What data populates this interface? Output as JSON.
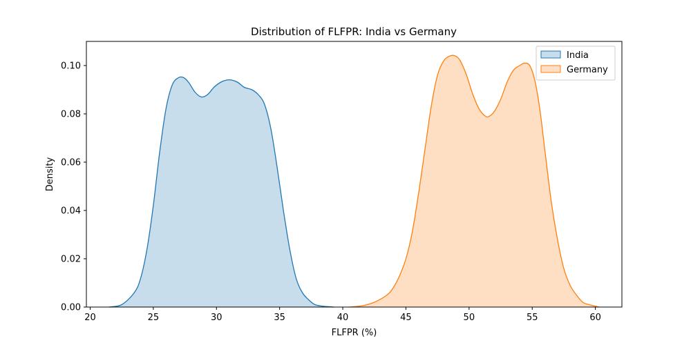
{
  "chart_data": {
    "type": "area",
    "title": "Distribution of FLFPR: India vs Germany",
    "xlabel": "FLFPR (%)",
    "ylabel": "Density",
    "xlim": [
      19.7,
      62.1
    ],
    "ylim": [
      0,
      0.11
    ],
    "xticks": [
      20,
      25,
      30,
      35,
      40,
      45,
      50,
      55,
      60
    ],
    "yticks": [
      0.0,
      0.02,
      0.04,
      0.06,
      0.08,
      0.1
    ],
    "ytick_labels": [
      "0.00",
      "0.02",
      "0.04",
      "0.06",
      "0.08",
      "0.10"
    ],
    "grid": false,
    "legend_position": "top-right",
    "series": [
      {
        "name": "India",
        "color": "#1f77b4",
        "x": [
          21.5,
          22.5,
          23.5,
          24.0,
          24.5,
          25.0,
          25.5,
          26.0,
          26.5,
          27.0,
          27.4,
          27.8,
          28.3,
          28.8,
          29.3,
          29.8,
          30.3,
          30.8,
          31.2,
          31.7,
          32.2,
          32.8,
          33.3,
          33.8,
          34.3,
          34.8,
          35.3,
          35.8,
          36.3,
          36.8,
          37.3,
          37.8,
          38.5,
          39.3
        ],
        "y": [
          0.0,
          0.001,
          0.006,
          0.012,
          0.024,
          0.042,
          0.064,
          0.082,
          0.092,
          0.095,
          0.095,
          0.093,
          0.089,
          0.087,
          0.088,
          0.091,
          0.093,
          0.094,
          0.094,
          0.093,
          0.091,
          0.09,
          0.088,
          0.084,
          0.074,
          0.058,
          0.04,
          0.024,
          0.012,
          0.006,
          0.003,
          0.001,
          0.0003,
          0.0
        ]
      },
      {
        "name": "Germany",
        "color": "#ff7f0e",
        "x": [
          40.5,
          41.5,
          42.5,
          43.5,
          44.0,
          44.5,
          45.0,
          45.5,
          46.0,
          46.5,
          47.0,
          47.5,
          48.0,
          48.5,
          48.9,
          49.3,
          49.8,
          50.3,
          50.8,
          51.3,
          51.6,
          52.0,
          52.5,
          53.0,
          53.5,
          54.0,
          54.4,
          54.8,
          55.2,
          55.6,
          56.0,
          56.5,
          57.0,
          57.5,
          58.0,
          58.5,
          59.0,
          59.5,
          60.3
        ],
        "y": [
          0.0,
          0.0005,
          0.002,
          0.005,
          0.008,
          0.013,
          0.02,
          0.031,
          0.047,
          0.065,
          0.083,
          0.096,
          0.102,
          0.104,
          0.104,
          0.102,
          0.096,
          0.088,
          0.082,
          0.079,
          0.079,
          0.081,
          0.086,
          0.093,
          0.098,
          0.1,
          0.101,
          0.1,
          0.094,
          0.082,
          0.065,
          0.044,
          0.028,
          0.016,
          0.009,
          0.005,
          0.002,
          0.001,
          0.0
        ]
      }
    ]
  }
}
